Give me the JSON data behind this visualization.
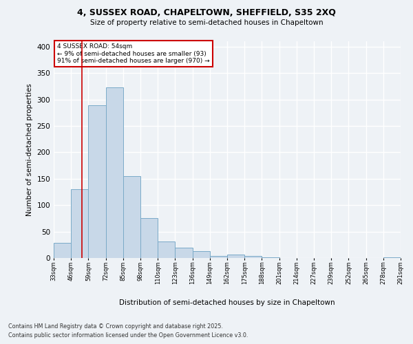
{
  "title1": "4, SUSSEX ROAD, CHAPELTOWN, SHEFFIELD, S35 2XQ",
  "title2": "Size of property relative to semi-detached houses in Chapeltown",
  "xlabel": "Distribution of semi-detached houses by size in Chapeltown",
  "ylabel": "Number of semi-detached properties",
  "bin_labels": [
    "33sqm",
    "46sqm",
    "59sqm",
    "72sqm",
    "85sqm",
    "98sqm",
    "110sqm",
    "123sqm",
    "136sqm",
    "149sqm",
    "162sqm",
    "175sqm",
    "188sqm",
    "201sqm",
    "214sqm",
    "227sqm",
    "239sqm",
    "252sqm",
    "265sqm",
    "278sqm",
    "291sqm"
  ],
  "bar_values": [
    28,
    130,
    289,
    323,
    155,
    76,
    31,
    19,
    13,
    4,
    6,
    4,
    1,
    0,
    0,
    0,
    0,
    0,
    0,
    1
  ],
  "bar_color": "#c8d8e8",
  "bar_edge_color": "#7aaac8",
  "subject_line_color": "#cc0000",
  "annotation_title": "4 SUSSEX ROAD: 54sqm",
  "annotation_line1": "← 9% of semi-detached houses are smaller (93)",
  "annotation_line2": "91% of semi-detached houses are larger (970) →",
  "annotation_box_color": "#cc0000",
  "ylim": [
    0,
    410
  ],
  "yticks": [
    0,
    50,
    100,
    150,
    200,
    250,
    300,
    350,
    400
  ],
  "footer_line1": "Contains HM Land Registry data © Crown copyright and database right 2025.",
  "footer_line2": "Contains public sector information licensed under the Open Government Licence v3.0.",
  "background_color": "#eef2f6",
  "grid_color": "#ffffff"
}
